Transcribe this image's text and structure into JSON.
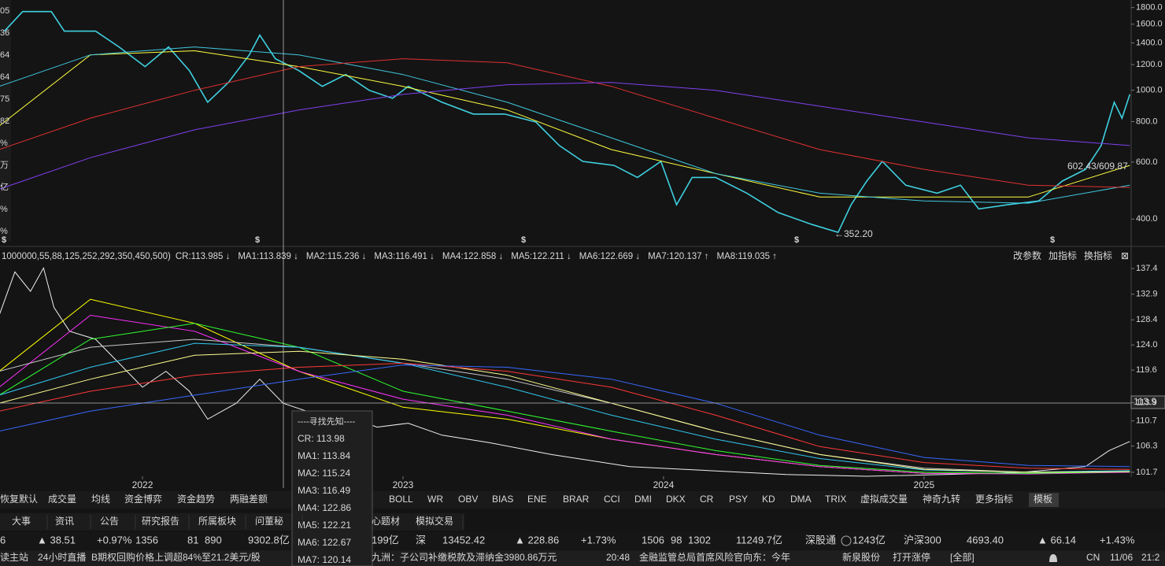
{
  "chart_data": [
    {
      "type": "line",
      "log_scale": true,
      "xlim": [
        2021.453,
        2025.795
      ],
      "ylim": [
        335,
        1900
      ],
      "yticks": [
        {
          "value": 1800,
          "label": "1800.0"
        },
        {
          "value": 1600,
          "label": "1600.0"
        },
        {
          "value": 1400,
          "label": "1400.0"
        },
        {
          "value": 1200,
          "label": "1200.0"
        },
        {
          "value": 1000,
          "label": "1000.0"
        },
        {
          "value": 800,
          "label": "800.0"
        },
        {
          "value": 600,
          "label": "600.0"
        },
        {
          "value": 400,
          "label": "400.0"
        }
      ],
      "annotations": [
        "602.43/609.87",
        "←352.20"
      ],
      "event_marker": "$",
      "series": [
        {
          "color": "#3fd0e0",
          "x": [
            2021.47,
            2021.54,
            2021.65,
            2021.7,
            2021.82,
            2021.91,
            2022.01,
            2022.1,
            2022.18,
            2022.25,
            2022.33,
            2022.41,
            2022.45,
            2022.51,
            2022.6,
            2022.69,
            2022.78,
            2022.87,
            2022.96,
            2023.02,
            2023.15,
            2023.27,
            2023.39,
            2023.51,
            2023.6,
            2023.69,
            2023.81,
            2023.9,
            2023.99,
            2024.05,
            2024.11,
            2024.2,
            2024.32,
            2024.44,
            2024.57,
            2024.67,
            2024.72,
            2024.78,
            2024.84,
            2024.93,
            2025.05,
            2025.14,
            2025.21,
            2025.32,
            2025.44,
            2025.53,
            2025.62,
            2025.68,
            2025.73,
            2025.76,
            2025.79
          ],
          "values": [
            1522,
            1750,
            1750,
            1522,
            1522,
            1361,
            1183,
            1361,
            1150,
            918,
            1057,
            1286,
            1480,
            1251,
            1150,
            1028,
            1118,
            1000,
            944,
            1028,
            918,
            844,
            844,
            798,
            675,
            603,
            586,
            538,
            603,
            443,
            538,
            538,
            481,
            419,
            385,
            364,
            443,
            524,
            603,
            509,
            481,
            509,
            430,
            443,
            455,
            524,
            570,
            675,
            918,
            820,
            971
          ]
        },
        {
          "color": "#ffff40",
          "x": [
            2021.45,
            2021.8,
            2022.2,
            2022.6,
            2023.0,
            2023.4,
            2023.8,
            2024.2,
            2024.6,
            2025.0,
            2025.4,
            2025.79
          ],
          "values": [
            776,
            1286,
            1324,
            1183,
            1028,
            869,
            656,
            553,
            468,
            468,
            468,
            586
          ]
        },
        {
          "color": "#40c8e0",
          "x": [
            2021.45,
            2021.8,
            2022.2,
            2022.6,
            2023.0,
            2023.4,
            2023.8,
            2024.2,
            2024.6,
            2025.0,
            2025.4,
            2025.79
          ],
          "values": [
            1028,
            1286,
            1361,
            1286,
            1118,
            918,
            713,
            553,
            481,
            455,
            448,
            509
          ]
        },
        {
          "color": "#e03030",
          "x": [
            2021.45,
            2021.8,
            2022.2,
            2022.6,
            2023.0,
            2023.4,
            2023.8,
            2024.2,
            2024.6,
            2025.0,
            2025.4,
            2025.79
          ],
          "values": [
            656,
            820,
            1000,
            1183,
            1251,
            1216,
            1028,
            820,
            656,
            570,
            509,
            501
          ]
        },
        {
          "color": "#8040f0",
          "x": [
            2021.45,
            2021.8,
            2022.2,
            2022.6,
            2023.0,
            2023.4,
            2023.8,
            2024.2,
            2024.6,
            2025.0,
            2025.4,
            2025.79
          ],
          "values": [
            495,
            619,
            755,
            869,
            971,
            1040,
            1057,
            1000,
            893,
            798,
            713,
            675
          ]
        }
      ]
    },
    {
      "type": "line",
      "legend_params": "1000000,55,88,125,252,292,350,450,500)",
      "xlim": [
        2021.453,
        2025.795
      ],
      "ylim": [
        101.0,
        138.1
      ],
      "xticks": [
        2022,
        2023,
        2024,
        2025
      ],
      "yticks": [
        137.4,
        132.9,
        128.4,
        {
          "value": 124.0,
          "label": "124.0"
        },
        119.6,
        113.9,
        110.7,
        106.3,
        101.7
      ],
      "series": [
        {
          "name": "CR:113.985 ↓",
          "color": "#f0f0f0",
          "x": [
            2021.45,
            2021.51,
            2021.57,
            2021.62,
            2021.66,
            2021.72,
            2021.82,
            2021.91,
            2022.0,
            2022.09,
            2022.18,
            2022.25,
            2022.36,
            2022.45,
            2022.54,
            2022.63,
            2022.78,
            2022.9,
            2023.02,
            2023.15,
            2023.33,
            2023.57,
            2023.87,
            2024.17,
            2024.47,
            2024.78,
            2025.08,
            2025.38,
            2025.62,
            2025.71,
            2025.79
          ],
          "values": [
            129.2,
            136.8,
            133.4,
            137.5,
            130.6,
            126.4,
            125.0,
            120.8,
            116.6,
            119.4,
            115.9,
            111.0,
            113.8,
            118.0,
            113.8,
            112.4,
            111.7,
            109.6,
            110.3,
            108.2,
            106.9,
            104.8,
            102.7,
            102.0,
            101.3,
            101.0,
            101.3,
            101.7,
            102.7,
            105.5,
            107.1
          ]
        },
        {
          "name": "MA1:113.839 ↓",
          "color": "#ffff00",
          "x": [
            2021.45,
            2021.8,
            2022.2,
            2022.6,
            2023.0,
            2023.4,
            2023.8,
            2024.2,
            2024.6,
            2025.0,
            2025.4,
            2025.79
          ],
          "values": [
            119.4,
            132.0,
            127.8,
            119.4,
            113.1,
            111.0,
            107.5,
            104.8,
            102.7,
            101.5,
            101.5,
            101.8
          ]
        },
        {
          "name": "MA2:115.236 ↓",
          "color": "#ff30ff",
          "x": [
            2021.45,
            2021.8,
            2022.2,
            2022.6,
            2023.0,
            2023.4,
            2023.8,
            2024.2,
            2024.6,
            2025.0,
            2025.4,
            2025.79
          ],
          "values": [
            116.6,
            129.2,
            126.4,
            119.4,
            114.5,
            111.7,
            107.5,
            104.8,
            102.7,
            101.5,
            101.4,
            101.7
          ]
        },
        {
          "name": "MA3:116.491 ↓",
          "color": "#30ff30",
          "x": [
            2021.45,
            2021.8,
            2022.2,
            2022.6,
            2023.0,
            2023.4,
            2023.8,
            2024.2,
            2024.6,
            2025.0,
            2025.4,
            2025.79
          ],
          "values": [
            115.2,
            125.0,
            127.8,
            123.6,
            115.9,
            112.4,
            108.9,
            105.5,
            102.9,
            101.7,
            101.5,
            101.8
          ]
        },
        {
          "name": "MA4:122.858 ↓",
          "color": "#c8c8c8",
          "x": [
            2021.45,
            2021.8,
            2022.2,
            2022.6,
            2023.0,
            2023.4,
            2023.8,
            2024.2,
            2024.6,
            2025.0,
            2025.4,
            2025.79
          ],
          "values": [
            119.4,
            123.6,
            125.0,
            123.6,
            120.8,
            118.0,
            113.8,
            108.9,
            104.8,
            102.4,
            101.7,
            101.8
          ]
        },
        {
          "name": "MA5:122.211 ↓",
          "color": "#30c8f0",
          "x": [
            2021.45,
            2021.8,
            2022.2,
            2022.6,
            2023.0,
            2023.4,
            2023.8,
            2024.2,
            2024.6,
            2025.0,
            2025.4,
            2025.79
          ],
          "values": [
            115.2,
            120.1,
            124.3,
            123.6,
            120.8,
            116.6,
            111.7,
            107.5,
            104.1,
            102.1,
            101.7,
            102.0
          ]
        },
        {
          "name": "MA6:122.669 ↓",
          "color": "#ffff90",
          "x": [
            2021.45,
            2021.8,
            2022.2,
            2022.6,
            2023.0,
            2023.4,
            2023.8,
            2024.2,
            2024.6,
            2025.0,
            2025.4,
            2025.79
          ],
          "values": [
            113.8,
            118.0,
            122.2,
            122.9,
            121.5,
            118.7,
            113.8,
            108.9,
            104.8,
            102.2,
            101.7,
            101.8
          ]
        },
        {
          "name": "MA7:120.137 ↑",
          "color": "#ff3838",
          "x": [
            2021.45,
            2021.8,
            2022.2,
            2022.6,
            2023.0,
            2023.4,
            2023.8,
            2024.2,
            2024.6,
            2025.0,
            2025.4,
            2025.79
          ],
          "values": [
            112.4,
            115.9,
            118.7,
            120.1,
            120.8,
            119.4,
            116.6,
            111.7,
            106.2,
            103.4,
            102.4,
            102.2
          ]
        },
        {
          "name": "MA8:119.035 ↑",
          "color": "#3868ff",
          "x": [
            2021.45,
            2021.8,
            2022.2,
            2022.6,
            2023.0,
            2023.4,
            2023.8,
            2024.2,
            2024.6,
            2025.0,
            2025.4,
            2025.79
          ],
          "values": [
            108.9,
            112.4,
            115.2,
            118.0,
            120.5,
            120.1,
            118.0,
            113.8,
            108.2,
            104.3,
            102.9,
            102.7
          ]
        }
      ]
    }
  ],
  "left_panel": [
    {
      "text": "05",
      "color": "#e0e0e0"
    },
    {
      "text": "36",
      "color": "#30e030"
    },
    {
      "text": "64",
      "color": "#ff4040"
    },
    {
      "text": "64",
      "color": "#30e030"
    },
    {
      "text": "75",
      "color": "#ff4040"
    },
    {
      "text": "82",
      "color": "#ff4040"
    },
    {
      "text": "%",
      "color": "#ff4040"
    },
    {
      "text": "万",
      "color": "#e0e0e0"
    },
    {
      "text": "亿",
      "color": "#30d0f0"
    },
    {
      "text": "%",
      "color": "#e0e0e0"
    },
    {
      "text": "%",
      "color": "#e0e0e0"
    }
  ],
  "crosshair_label": "113.9",
  "panel_actions": [
    "改参数",
    "加指标",
    "换指标",
    "⊠"
  ],
  "tooltip": {
    "title": "----寻找先知----",
    "lines": [
      "CR: 113.98",
      "MA1: 113.84",
      "MA2: 115.24",
      "MA3: 116.49",
      "MA4: 122.86",
      "MA5: 122.21",
      "MA6: 122.67",
      "MA7: 120.14"
    ]
  },
  "indicator_tabs": [
    "恢复默认",
    "成交量",
    "均线",
    "资金博弈",
    "资金趋势",
    "两融差额",
    "BOLL",
    "WR",
    "OBV",
    "BIAS",
    "ENE",
    "BRAR",
    "CCI",
    "DMI",
    "DKX",
    "CR",
    "PSY",
    "KD",
    "DMA",
    "TRIX",
    "虚拟成交量",
    "神奇九转",
    "更多指标",
    "模板"
  ],
  "info_tabs": [
    "大事",
    "资讯",
    "公告",
    "研究报告",
    "所属板块",
    "问董秘",
    "心题材",
    "模拟交易"
  ],
  "index_bar": [
    {
      "text": "6",
      "color": "#ff4040"
    },
    {
      "text": "▲ 38.51",
      "color": "#ff4040"
    },
    {
      "text": "+0.97%",
      "color": "#ff4040"
    },
    {
      "text": "1356",
      "color": "#ff4040"
    },
    {
      "text": "81",
      "color": "#e0e0e0"
    },
    {
      "text": "890",
      "color": "#30e030"
    },
    {
      "text": "9302.8亿",
      "color": "#30d0f0"
    },
    {
      "text": "199亿",
      "color": "#30d0f0"
    },
    {
      "text": "深",
      "color": "#e0e0e0"
    },
    {
      "text": "13452.42",
      "color": "#ff4040"
    },
    {
      "text": "▲ 228.86",
      "color": "#ff4040"
    },
    {
      "text": "+1.73%",
      "color": "#ff4040"
    },
    {
      "text": "1506",
      "color": "#ff4040"
    },
    {
      "text": "98",
      "color": "#e0e0e0"
    },
    {
      "text": "1302",
      "color": "#30e030"
    },
    {
      "text": "11249.7亿",
      "color": "#30d0f0"
    },
    {
      "text": "深股通",
      "color": "#e0e0e0"
    },
    {
      "text": "1243亿",
      "color": "#30d0f0"
    },
    {
      "text": "沪深300",
      "color": "#e0e0e0"
    },
    {
      "text": "4693.40",
      "color": "#ff4040"
    },
    {
      "text": "▲ 66.14",
      "color": "#ff4040"
    },
    {
      "text": "+1.43%",
      "color": "#ff4040"
    }
  ],
  "news_bar": [
    {
      "text": "读主站",
      "color": "#e0e0e0"
    },
    {
      "text": "24小时直播",
      "color": "#e0e0e0"
    },
    {
      "text": "B期权回购价格上调超84%至21.2美元/股",
      "color": "#e0e0e0"
    },
    {
      "text": "九洲：子公司补缴税款及滞纳金3980.86万元",
      "color": "#e0e0e0"
    },
    {
      "text": "20:48",
      "color": "#e0e0e0"
    },
    {
      "text": "金融监管总局首席风险官向东：今年",
      "color": "#e0e0e0"
    },
    {
      "text": "新泉股份",
      "color": "#30e030"
    },
    {
      "text": "打开涨停",
      "color": "#30e030"
    },
    {
      "text": "[全部]",
      "color": "#e0e0e0"
    },
    {
      "text": "CN",
      "color": "#e0e0e0"
    },
    {
      "text": "11/06",
      "color": "#e0e0e0"
    },
    {
      "text": "21:2",
      "color": "#e0e0e0"
    }
  ]
}
